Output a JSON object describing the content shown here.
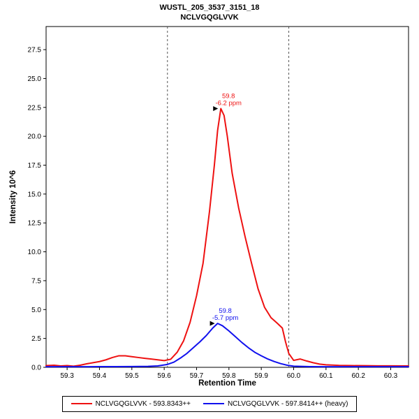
{
  "title": {
    "line1": "WUSTL_205_3537_3151_18",
    "line2": "NCLVGQGLVVK"
  },
  "chart_data": {
    "type": "line",
    "title": "WUSTL_205_3537_3151_18",
    "subtitle": "NCLVGQGLVVK",
    "xlabel": "Retention Time",
    "ylabel": "Intensity 10^6",
    "xlim": [
      59.235,
      60.355
    ],
    "ylim": [
      0,
      29.5
    ],
    "xticks": [
      "59.3",
      "59.4",
      "59.5",
      "59.6",
      "59.7",
      "59.8",
      "59.9",
      "60.0",
      "60.1",
      "60.2",
      "60.3"
    ],
    "yticks": [
      "0.0",
      "2.5",
      "5.0",
      "7.5",
      "10.0",
      "12.5",
      "15.0",
      "17.5",
      "20.0",
      "22.5",
      "25.0",
      "27.5"
    ],
    "grid": false,
    "legend_position": "bottom",
    "boundaries": [
      59.61,
      59.985
    ],
    "boundary_color": "#555555",
    "series": [
      {
        "name": "NCLVGQGLVVK - 593.8343++",
        "color": "#ee1111",
        "x": [
          59.235,
          59.26,
          59.28,
          59.3,
          59.32,
          59.34,
          59.36,
          59.38,
          59.4,
          59.42,
          59.44,
          59.46,
          59.48,
          59.5,
          59.52,
          59.54,
          59.56,
          59.58,
          59.6,
          59.62,
          59.64,
          59.66,
          59.68,
          59.7,
          59.72,
          59.74,
          59.755,
          59.765,
          59.775,
          59.785,
          59.795,
          59.81,
          59.83,
          59.85,
          59.87,
          59.89,
          59.91,
          59.93,
          59.95,
          59.965,
          59.975,
          59.985,
          60.0,
          60.02,
          60.04,
          60.06,
          60.08,
          60.1,
          60.14,
          60.18,
          60.22,
          60.26,
          60.3,
          60.355
        ],
        "y": [
          0.15,
          0.18,
          0.12,
          0.15,
          0.1,
          0.18,
          0.3,
          0.4,
          0.5,
          0.65,
          0.85,
          1.0,
          1.0,
          0.92,
          0.85,
          0.78,
          0.72,
          0.65,
          0.58,
          0.7,
          1.3,
          2.3,
          3.9,
          6.2,
          9.0,
          13.5,
          17.5,
          20.5,
          22.4,
          21.8,
          20.0,
          16.8,
          13.8,
          11.3,
          9.0,
          6.8,
          5.2,
          4.3,
          3.8,
          3.4,
          2.2,
          1.2,
          0.6,
          0.72,
          0.55,
          0.4,
          0.28,
          0.22,
          0.17,
          0.15,
          0.14,
          0.13,
          0.13,
          0.12
        ]
      },
      {
        "name": "NCLVGQGLVVK - 597.8414++ (heavy)",
        "color": "#1111ee",
        "x": [
          59.235,
          59.3,
          59.35,
          59.4,
          59.45,
          59.5,
          59.55,
          59.58,
          59.61,
          59.63,
          59.65,
          59.67,
          59.69,
          59.71,
          59.73,
          59.75,
          59.765,
          59.78,
          59.8,
          59.82,
          59.84,
          59.86,
          59.88,
          59.9,
          59.92,
          59.94,
          59.96,
          59.98,
          60.0,
          60.05,
          60.1,
          60.2,
          60.3,
          60.355
        ],
        "y": [
          0.05,
          0.05,
          0.05,
          0.06,
          0.06,
          0.07,
          0.08,
          0.12,
          0.25,
          0.45,
          0.8,
          1.2,
          1.7,
          2.2,
          2.75,
          3.4,
          3.8,
          3.6,
          3.15,
          2.65,
          2.15,
          1.7,
          1.3,
          1.0,
          0.72,
          0.5,
          0.32,
          0.18,
          0.1,
          0.06,
          0.05,
          0.05,
          0.05,
          0.05
        ]
      }
    ],
    "annotations": [
      {
        "x": 59.775,
        "y": 22.4,
        "line1": "59.8",
        "line2": "-6.2 ppm",
        "color": "#ee1111"
      },
      {
        "x": 59.765,
        "y": 3.8,
        "line1": "59.8",
        "line2": "-5.7 ppm",
        "color": "#1111ee"
      }
    ]
  }
}
